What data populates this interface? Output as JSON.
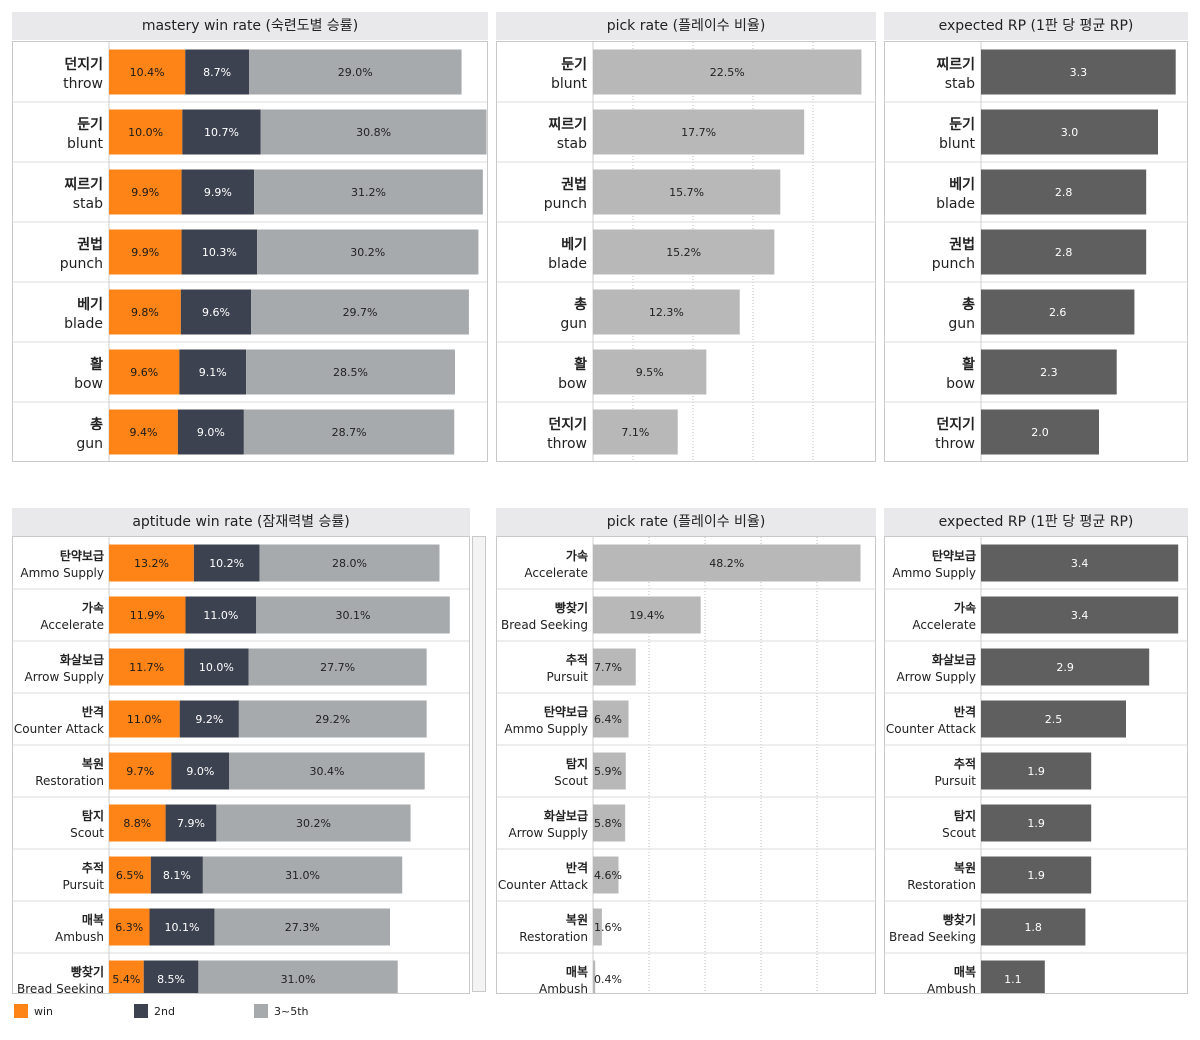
{
  "colors": {
    "win": "#ff8418",
    "second": "#3d4250",
    "third": "#a6aaad",
    "pick": "#b8b8b8",
    "rp": "#5f5f5f"
  },
  "legend": [
    {
      "label": "win",
      "color": "#ff8418"
    },
    {
      "label": "2nd",
      "color": "#3d4250"
    },
    {
      "label": "3~5th",
      "color": "#a6aaad"
    }
  ],
  "chart_data": [
    {
      "type": "bar",
      "stacked": true,
      "orientation": "horizontal",
      "title": "mastery win rate (숙련도별 승률)",
      "categories": [
        [
          "던지기",
          "throw"
        ],
        [
          "둔기",
          "blunt"
        ],
        [
          "찌르기",
          "stab"
        ],
        [
          "권법",
          "punch"
        ],
        [
          "베기",
          "blade"
        ],
        [
          "활",
          "bow"
        ],
        [
          "총",
          "gun"
        ]
      ],
      "series": [
        {
          "name": "win",
          "values": [
            10.4,
            10.0,
            9.9,
            9.9,
            9.8,
            9.6,
            9.4
          ],
          "labels": [
            "10.4%",
            "10.0%",
            "9.9%",
            "9.9%",
            "9.8%",
            "9.6%",
            "9.4%"
          ]
        },
        {
          "name": "2nd",
          "values": [
            8.7,
            10.7,
            9.9,
            10.3,
            9.6,
            9.1,
            9.0
          ],
          "labels": [
            "8.7%",
            "10.7%",
            "9.9%",
            "10.3%",
            "9.6%",
            "9.1%",
            "9.0%"
          ]
        },
        {
          "name": "3~5th",
          "values": [
            29.0,
            30.8,
            31.2,
            30.2,
            29.7,
            28.5,
            28.7
          ],
          "labels": [
            "29.0%",
            "30.8%",
            "31.2%",
            "30.2%",
            "29.7%",
            "28.5%",
            "28.7%"
          ]
        }
      ]
    },
    {
      "type": "bar",
      "orientation": "horizontal",
      "title": "pick rate (플레이수 비율)",
      "grid": true,
      "categories": [
        [
          "둔기",
          "blunt"
        ],
        [
          "찌르기",
          "stab"
        ],
        [
          "권법",
          "punch"
        ],
        [
          "베기",
          "blade"
        ],
        [
          "총",
          "gun"
        ],
        [
          "활",
          "bow"
        ],
        [
          "던지기",
          "throw"
        ]
      ],
      "values": [
        22.5,
        17.7,
        15.7,
        15.2,
        12.3,
        9.5,
        7.1
      ],
      "labels": [
        "22.5%",
        "17.7%",
        "15.7%",
        "15.2%",
        "12.3%",
        "9.5%",
        "7.1%"
      ]
    },
    {
      "type": "bar",
      "orientation": "horizontal",
      "title": "expected RP (1판 당 평균 RP)",
      "categories": [
        [
          "찌르기",
          "stab"
        ],
        [
          "둔기",
          "blunt"
        ],
        [
          "베기",
          "blade"
        ],
        [
          "권법",
          "punch"
        ],
        [
          "총",
          "gun"
        ],
        [
          "활",
          "bow"
        ],
        [
          "던지기",
          "throw"
        ]
      ],
      "values": [
        3.3,
        3.0,
        2.8,
        2.8,
        2.6,
        2.3,
        2.0
      ],
      "labels": [
        "3.3",
        "3.0",
        "2.8",
        "2.8",
        "2.6",
        "2.3",
        "2.0"
      ]
    },
    {
      "type": "bar",
      "stacked": true,
      "orientation": "horizontal",
      "title": "aptitude win rate (잠재력별 승률)",
      "categories": [
        [
          "탄약보급",
          "Ammo Supply"
        ],
        [
          "가속",
          "Accelerate"
        ],
        [
          "화살보급",
          "Arrow Supply"
        ],
        [
          "반격",
          "Counter Attack"
        ],
        [
          "복원",
          "Restoration"
        ],
        [
          "탐지",
          "Scout"
        ],
        [
          "추적",
          "Pursuit"
        ],
        [
          "매복",
          "Ambush"
        ],
        [
          "빵찾기",
          "Bread Seeking"
        ]
      ],
      "series": [
        {
          "name": "win",
          "values": [
            13.2,
            11.9,
            11.7,
            11.0,
            9.7,
            8.8,
            6.5,
            6.3,
            5.4
          ],
          "labels": [
            "13.2%",
            "11.9%",
            "11.7%",
            "11.0%",
            "9.7%",
            "8.8%",
            "6.5%",
            "6.3%",
            "5.4%"
          ]
        },
        {
          "name": "2nd",
          "values": [
            10.2,
            11.0,
            10.0,
            9.2,
            9.0,
            7.9,
            8.1,
            10.1,
            8.5
          ],
          "labels": [
            "10.2%",
            "11.0%",
            "10.0%",
            "9.2%",
            "9.0%",
            "7.9%",
            "8.1%",
            "10.1%",
            "8.5%"
          ]
        },
        {
          "name": "3~5th",
          "values": [
            28.0,
            30.1,
            27.7,
            29.2,
            30.4,
            30.2,
            31.0,
            27.3,
            31.0
          ],
          "labels": [
            "28.0%",
            "30.1%",
            "27.7%",
            "29.2%",
            "30.4%",
            "30.2%",
            "31.0%",
            "27.3%",
            "31.0%"
          ]
        }
      ]
    },
    {
      "type": "bar",
      "orientation": "horizontal",
      "title": "pick rate (플레이수 비율)",
      "grid": true,
      "categories": [
        [
          "가속",
          "Accelerate"
        ],
        [
          "빵찾기",
          "Bread Seeking"
        ],
        [
          "추적",
          "Pursuit"
        ],
        [
          "탄약보급",
          "Ammo Supply"
        ],
        [
          "탐지",
          "Scout"
        ],
        [
          "화살보급",
          "Arrow Supply"
        ],
        [
          "반격",
          "Counter Attack"
        ],
        [
          "복원",
          "Restoration"
        ],
        [
          "매복",
          "Ambush"
        ]
      ],
      "values": [
        48.2,
        19.4,
        7.7,
        6.4,
        5.9,
        5.8,
        4.6,
        1.6,
        0.4
      ],
      "labels": [
        "48.2%",
        "19.4%",
        "7.7%",
        "6.4%",
        "5.9%",
        "5.8%",
        "4.6%",
        "1.6%",
        "0.4%"
      ]
    },
    {
      "type": "bar",
      "orientation": "horizontal",
      "title": "expected RP (1판 당 평균 RP)",
      "categories": [
        [
          "탄약보급",
          "Ammo Supply"
        ],
        [
          "가속",
          "Accelerate"
        ],
        [
          "화살보급",
          "Arrow Supply"
        ],
        [
          "반격",
          "Counter Attack"
        ],
        [
          "추적",
          "Pursuit"
        ],
        [
          "탐지",
          "Scout"
        ],
        [
          "복원",
          "Restoration"
        ],
        [
          "빵찾기",
          "Bread Seeking"
        ],
        [
          "매복",
          "Ambush"
        ]
      ],
      "values": [
        3.4,
        3.4,
        2.9,
        2.5,
        1.9,
        1.9,
        1.9,
        1.8,
        1.1
      ],
      "labels": [
        "3.4",
        "3.4",
        "2.9",
        "2.5",
        "1.9",
        "1.9",
        "1.9",
        "1.8",
        "1.1"
      ]
    }
  ]
}
